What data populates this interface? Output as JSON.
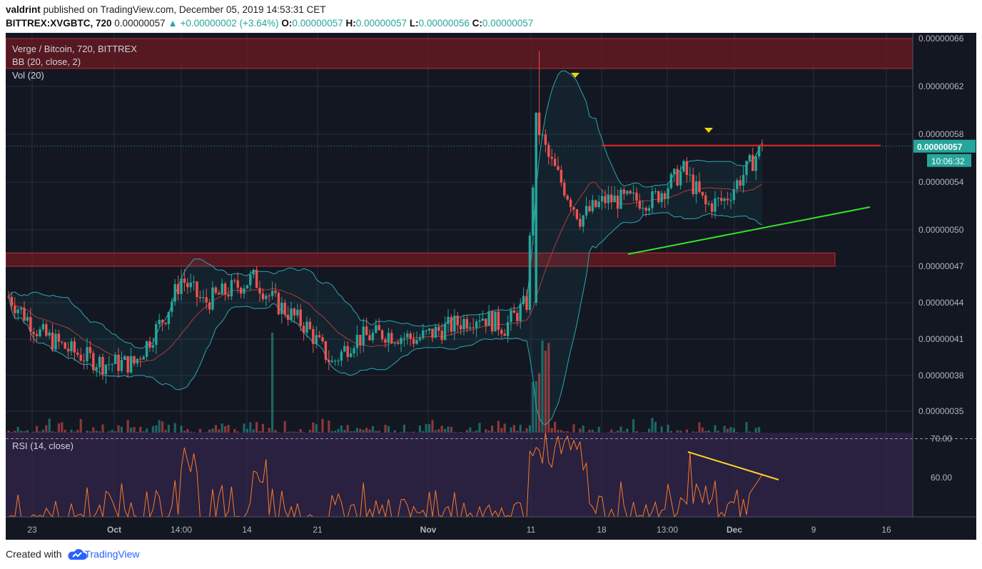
{
  "header": {
    "publisher": "valdrint",
    "published_text": "published on TradingView.com, December 05, 2019 14:53:31 CET",
    "symbol": "BITTREX:XVGBTC, 720",
    "last": "0.00000057",
    "change": "▲ +0.00000002 (+3.64%)",
    "o_label": "O:",
    "o_value": "0.00000057",
    "h_label": "H:",
    "h_value": "0.00000057",
    "l_label": "L:",
    "l_value": "0.00000056",
    "c_label": "C:",
    "c_value": "0.00000057"
  },
  "legend": {
    "title": "Verge / Bitcoin, 720, BITTREX",
    "bb": "BB (20, close, 2)",
    "vol": "Vol (20)",
    "rsi": "RSI (14, close)"
  },
  "price_tag": "0.00000057",
  "countdown": "10:06:32",
  "footer": {
    "created_with": "Created with",
    "brand": "TradingView"
  },
  "colors": {
    "background": "#131722",
    "up": "#26a69a",
    "down": "#ef5350",
    "bb_band": "#2aa8b0",
    "bb_basis": "#b23a3a",
    "rsi_line": "#f57c29",
    "rsi_bg": "#2a2040",
    "resistance": "#e52222",
    "support": "#37e02a",
    "rsi_trend": "#f7d22c",
    "zone": "#6d1a22",
    "marker": "#f5d300"
  },
  "chart_data": {
    "type": "candlestick",
    "title": "Verge / Bitcoin, 720, BITTREX",
    "y_ticks": [
      "0.00000066",
      "0.00000062",
      "0.00000058",
      "0.00000054",
      "0.00000050",
      "0.00000047",
      "0.00000044",
      "0.00000041",
      "0.00000038",
      "0.00000035"
    ],
    "ylim": [
      3.3e-07,
      6.7e-07
    ],
    "x_ticks": [
      "23",
      "Oct",
      "14:00",
      "14",
      "21",
      "Nov",
      "11",
      "18",
      "13:00",
      "Dec",
      "9",
      "16"
    ],
    "rsi_ticks": [
      "70.00",
      "60.00"
    ],
    "rsi_ylim": [
      50,
      71
    ],
    "key_prices": {
      "last": 5.7e-07,
      "resistance": 5.7e-07
    },
    "anchors": [
      {
        "i": 0,
        "c": 4.45e-07
      },
      {
        "i": 10,
        "c": 4.15e-07
      },
      {
        "i": 20,
        "c": 4e-07
      },
      {
        "i": 30,
        "c": 3.9e-07
      },
      {
        "i": 40,
        "c": 3.9e-07
      },
      {
        "i": 50,
        "c": 4.3e-07
      },
      {
        "i": 55,
        "c": 4.6e-07
      },
      {
        "i": 62,
        "c": 4.4e-07
      },
      {
        "i": 70,
        "c": 4.5e-07
      },
      {
        "i": 78,
        "c": 4.6e-07
      },
      {
        "i": 85,
        "c": 4.4e-07
      },
      {
        "i": 95,
        "c": 4.2e-07
      },
      {
        "i": 103,
        "c": 3.9e-07
      },
      {
        "i": 110,
        "c": 4.1e-07
      },
      {
        "i": 120,
        "c": 4.15e-07
      },
      {
        "i": 130,
        "c": 4.1e-07
      },
      {
        "i": 140,
        "c": 4.2e-07
      },
      {
        "i": 150,
        "c": 4.3e-07
      },
      {
        "i": 158,
        "c": 4.2e-07
      },
      {
        "i": 165,
        "c": 4.4e-07
      },
      {
        "i": 168,
        "c": 5.9e-07
      },
      {
        "i": 172,
        "c": 5.6e-07
      },
      {
        "i": 182,
        "c": 5.1e-07
      },
      {
        "i": 190,
        "c": 5.25e-07
      },
      {
        "i": 205,
        "c": 5.25e-07
      },
      {
        "i": 215,
        "c": 5.5e-07
      },
      {
        "i": 222,
        "c": 5.2e-07
      },
      {
        "i": 228,
        "c": 5.25e-07
      },
      {
        "i": 235,
        "c": 5.5e-07
      },
      {
        "i": 240,
        "c": 5.7e-07
      }
    ],
    "annotations": [
      {
        "kind": "zone",
        "label": "resistance zone",
        "y_from": 6.35e-07,
        "y_to": 6.6e-07
      },
      {
        "kind": "zone",
        "label": "support zone",
        "y_from": 4.7e-07,
        "y_to": 4.81e-07
      },
      {
        "kind": "hline",
        "label": "resistance",
        "y": 5.7e-07
      },
      {
        "kind": "trendline",
        "label": "ascending support"
      },
      {
        "kind": "trendline",
        "label": "RSI bearish divergence"
      },
      {
        "kind": "marker",
        "label": "top"
      },
      {
        "kind": "marker",
        "label": "top"
      }
    ]
  }
}
